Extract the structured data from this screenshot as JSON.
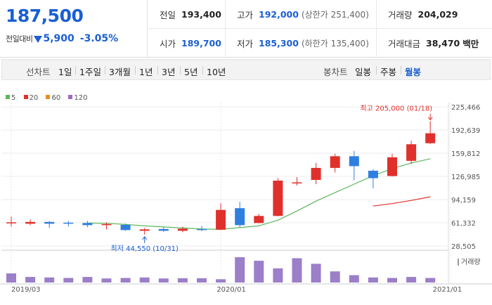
{
  "quote": {
    "current_price": "187,500",
    "change_label": "전일대비",
    "change_direction_icon": "down-triangle-icon",
    "change_amount": "5,900",
    "change_rate": "-3.05%",
    "prev_close_label": "전일",
    "prev_close": "193,400",
    "open_label": "시가",
    "open": "189,700",
    "high_label": "고가",
    "high": "192,000",
    "upper_limit": "(상한가 251,400)",
    "low_label": "저가",
    "low": "185,300",
    "lower_limit": "(하한가 135,400)",
    "volume_label": "거래량",
    "volume": "204,029",
    "trade_value_label": "거래대금",
    "trade_value": "38,470",
    "trade_value_unit": "백만"
  },
  "toolbar": {
    "line_chart_label": "선차트",
    "line_periods": [
      "1일",
      "1주일",
      "3개월",
      "1년",
      "3년",
      "5년",
      "10년"
    ],
    "candle_chart_label": "봉차트",
    "candle_periods": [
      "일봉",
      "주봉",
      "월봉"
    ],
    "active_candle_period": "월봉"
  },
  "colors": {
    "rise": "#e0302b",
    "fall": "#2f7fe0",
    "ma5": "#5cb85c",
    "ma20": "#e0302b",
    "ma60": "#f08a1c",
    "ma120": "#9b6bc4",
    "volume": "#9b7fc9"
  },
  "chart_data": {
    "type": "candlestick",
    "legend": [
      {
        "name": "5",
        "color": "#5cb85c"
      },
      {
        "name": "20",
        "color": "#e0302b"
      },
      {
        "name": "60",
        "color": "#f08a1c"
      },
      {
        "name": "120",
        "color": "#9b6bc4"
      }
    ],
    "y_ticks": [
      "225,466",
      "192,639",
      "159,812",
      "126,985",
      "94,159",
      "61,332",
      "28,505"
    ],
    "y_tick_values": [
      225466,
      192639,
      159812,
      126985,
      94159,
      61332,
      28505
    ],
    "ylim": [
      28505,
      225466
    ],
    "x_ticks": [
      "2019/03",
      "2020/01",
      "2021/01"
    ],
    "volume_label": "거래량",
    "annotations": {
      "high_label": "최고 205,000 (01/18)",
      "low_label": "최저 44,550 (10/31)"
    },
    "candles": [
      {
        "open": 62000,
        "close": 62000,
        "high": 70000,
        "low": 56000
      },
      {
        "open": 60000,
        "close": 62500,
        "high": 66000,
        "low": 58000
      },
      {
        "open": 62500,
        "close": 60000,
        "high": 64000,
        "low": 54000
      },
      {
        "open": 61500,
        "close": 61000,
        "high": 64000,
        "low": 56000
      },
      {
        "open": 61000,
        "close": 58000,
        "high": 64000,
        "low": 55000
      },
      {
        "open": 58000,
        "close": 59500,
        "high": 62000,
        "low": 52000
      },
      {
        "open": 58500,
        "close": 51000,
        "high": 60000,
        "low": 50000
      },
      {
        "open": 50000,
        "close": 52000,
        "high": 54000,
        "low": 44550
      },
      {
        "open": 52500,
        "close": 50000,
        "high": 55000,
        "low": 48500
      },
      {
        "open": 50000,
        "close": 53000,
        "high": 56000,
        "low": 48000
      },
      {
        "open": 52500,
        "close": 51500,
        "high": 57000,
        "low": 49500
      },
      {
        "open": 51500,
        "close": 79500,
        "high": 89000,
        "low": 51000
      },
      {
        "open": 82000,
        "close": 58000,
        "high": 91000,
        "low": 55000
      },
      {
        "open": 61000,
        "close": 71000,
        "high": 74000,
        "low": 60500
      },
      {
        "open": 71000,
        "close": 121000,
        "high": 124500,
        "low": 70500
      },
      {
        "open": 117000,
        "close": 118500,
        "high": 126000,
        "low": 114000
      },
      {
        "open": 122000,
        "close": 139000,
        "high": 146000,
        "low": 116000
      },
      {
        "open": 139000,
        "close": 155500,
        "high": 159000,
        "low": 132500
      },
      {
        "open": 155500,
        "close": 141500,
        "high": 163000,
        "low": 121500
      },
      {
        "open": 135000,
        "close": 124500,
        "high": 137000,
        "low": 110000
      },
      {
        "open": 127500,
        "close": 154000,
        "high": 159000,
        "low": 127000
      },
      {
        "open": 149000,
        "close": 172500,
        "high": 177500,
        "low": 144500
      },
      {
        "open": 174000,
        "close": 188000,
        "high": 205000,
        "low": 172500
      }
    ],
    "ma5": [
      null,
      null,
      null,
      null,
      61000,
      60500,
      59000,
      57000,
      55500,
      54000,
      52500,
      52000,
      54500,
      57000,
      65000,
      78000,
      92000,
      104000,
      116000,
      128000,
      138000,
      146000,
      152000
    ],
    "ma20": [
      null,
      null,
      null,
      null,
      null,
      null,
      null,
      null,
      null,
      null,
      null,
      null,
      null,
      null,
      null,
      null,
      null,
      null,
      null,
      85000,
      88500,
      93000,
      98000
    ],
    "volume": [
      36,
      22,
      20,
      18,
      22,
      16,
      18,
      20,
      16,
      17,
      17,
      13,
      100,
      86,
      56,
      96,
      74,
      44,
      29,
      20,
      18,
      22,
      18
    ]
  }
}
